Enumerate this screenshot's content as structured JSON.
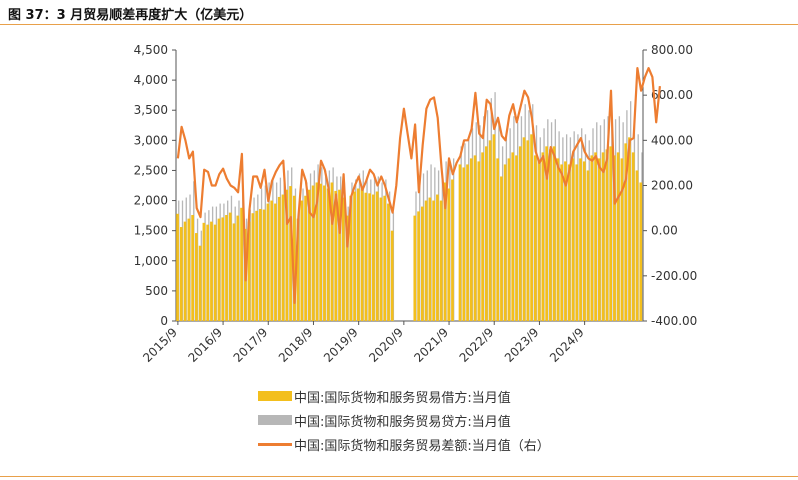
{
  "title": "图 37：3 月贸易顺差再度扩大（亿美元）",
  "colors": {
    "debit": "#f3bf1d",
    "credit": "#b7b7b7",
    "balance": "#ed7d31",
    "rule": "#e8a04a"
  },
  "legend": [
    {
      "key": "debit",
      "label": "中国:国际货物和服务贸易借方:当月值"
    },
    {
      "key": "credit",
      "label": "中国:国际货物和服务贸易贷方:当月值"
    },
    {
      "key": "balance",
      "label": "中国:国际货物和服务贸易差额:当月值（右）"
    }
  ],
  "chart_data": {
    "type": "bar+line",
    "x_start": "2015-09",
    "x_tick_labels": [
      "2015/9",
      "2016/9",
      "2017/9",
      "2018/9",
      "2019/9",
      "2020/9",
      "2021/9",
      "2022/9",
      "2023/9",
      "2024/9"
    ],
    "ylim": [
      0,
      4500
    ],
    "y_ticks": [
      "0",
      "500",
      "1,000",
      "1,500",
      "2,000",
      "2,500",
      "3,000",
      "3,500",
      "4,000",
      "4,500"
    ],
    "y2lim": [
      -400,
      800
    ],
    "y2_ticks": [
      "-400.00",
      "-200.00",
      "0.00",
      "200.00",
      "400.00",
      "600.00",
      "800.00"
    ],
    "series": [
      {
        "name": "中国:国际货物和服务贸易借方:当月值",
        "type": "bar",
        "axis": "left",
        "values": [
          1780,
          1560,
          1650,
          1700,
          1760,
          1460,
          1250,
          1630,
          1600,
          1650,
          1600,
          1700,
          1720,
          1760,
          1800,
          1620,
          1750,
          1880,
          1530,
          1650,
          1790,
          1830,
          1860,
          1850,
          1950,
          2000,
          1950,
          2060,
          2100,
          2180,
          2240,
          2080,
          1700,
          2000,
          2080,
          2180,
          2250,
          2300,
          2280,
          2250,
          2200,
          2300,
          2160,
          2180,
          2050,
          1750,
          2080,
          2150,
          2200,
          2200,
          2130,
          2120,
          2100,
          2150,
          2050,
          2080,
          1950,
          1500,
          0,
          0,
          0,
          0,
          0,
          1750,
          1820,
          1900,
          2000,
          2050,
          2000,
          2100,
          2000,
          2300,
          2200,
          2350,
          0,
          2600,
          2550,
          2600,
          2700,
          2750,
          2650,
          2800,
          2900,
          3000,
          3100,
          2700,
          2400,
          2600,
          2700,
          2800,
          2750,
          2900,
          3050,
          3000,
          3100,
          2750,
          2650,
          2800,
          2900,
          2850,
          2900,
          2700,
          2600,
          2650,
          2600,
          2700,
          2600,
          2700,
          2650,
          2500,
          2750,
          2800,
          2700,
          2800,
          2850,
          2900,
          2750,
          2800,
          2700,
          2950,
          3050,
          2800,
          2500,
          2300
        ],
        "note": "0 marks months with no bar"
      },
      {
        "name": "中国:国际货物和服务贸易贷方:当月值",
        "type": "bar",
        "axis": "left",
        "values": [
          2000,
          2000,
          2050,
          2100,
          2320,
          1700,
          1500,
          1800,
          1840,
          1900,
          1900,
          1950,
          1950,
          2000,
          2080,
          1900,
          2000,
          2200,
          1700,
          1850,
          2050,
          2100,
          2200,
          2250,
          2300,
          2350,
          2300,
          2380,
          2450,
          2500,
          2550,
          2200,
          1900,
          2200,
          2300,
          2450,
          2500,
          2600,
          2550,
          2500,
          2500,
          2550,
          2400,
          2400,
          2300,
          1900,
          2300,
          2350,
          2450,
          2500,
          2400,
          2350,
          2400,
          2400,
          2300,
          2350,
          2150,
          1800,
          0,
          0,
          0,
          0,
          0,
          2150,
          2250,
          2450,
          2500,
          2600,
          2550,
          2500,
          2450,
          2650,
          2600,
          2700,
          0,
          2900,
          2950,
          3050,
          3200,
          3300,
          3250,
          3400,
          3500,
          3700,
          3800,
          3300,
          2900,
          3100,
          3200,
          3400,
          3300,
          3400,
          3600,
          3500,
          3600,
          3250,
          3050,
          3200,
          3350,
          3300,
          3350,
          3150,
          3050,
          3100,
          3050,
          3150,
          3100,
          3200,
          3100,
          3000,
          3200,
          3300,
          3250,
          3350,
          3400,
          3500,
          3350,
          3400,
          3300,
          3500,
          3650,
          3350,
          3100,
          2800
        ]
      },
      {
        "name": "中国:国际货物和服务贸易差额:当月值（右）",
        "type": "line",
        "axis": "right",
        "values": [
          320,
          460,
          400,
          320,
          350,
          100,
          60,
          270,
          260,
          200,
          200,
          250,
          275,
          230,
          200,
          190,
          170,
          340,
          -220,
          90,
          240,
          240,
          190,
          270,
          130,
          220,
          260,
          290,
          310,
          30,
          60,
          -320,
          60,
          270,
          220,
          80,
          60,
          130,
          310,
          270,
          190,
          30,
          160,
          -10,
          250,
          -70,
          150,
          200,
          240,
          180,
          220,
          270,
          250,
          200,
          240,
          200,
          140,
          80,
          200,
          410,
          540,
          430,
          320,
          470,
          170,
          380,
          540,
          580,
          590,
          500,
          280,
          100,
          320,
          250,
          300,
          330,
          400,
          400,
          450,
          610,
          430,
          410,
          580,
          560,
          450,
          500,
          420,
          400,
          510,
          560,
          480,
          550,
          620,
          590,
          500,
          350,
          300,
          330,
          230,
          370,
          330,
          280,
          250,
          200,
          270,
          350,
          380,
          410,
          350,
          320,
          310,
          330,
          280,
          260,
          320,
          620,
          120,
          150,
          180,
          230,
          400,
          410,
          720,
          620,
          680,
          720,
          680,
          480,
          640
        ]
      }
    ]
  }
}
